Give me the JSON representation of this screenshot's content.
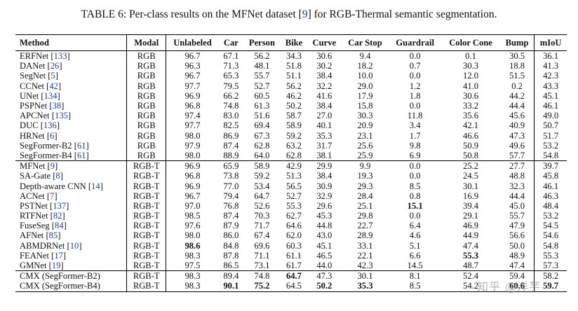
{
  "caption": {
    "prefix": "TABLE 6: Per-class results on the MFNet dataset [",
    "ref": "9",
    "suffix": "] for RGB-Thermal semantic segmentation."
  },
  "headers": [
    "Method",
    "Modal",
    "Unlabeled",
    "Car",
    "Person",
    "Bike",
    "Curve",
    "Car Stop",
    "Guardrail",
    "Color Cone",
    "Bump",
    "mIoU"
  ],
  "groups": [
    [
      {
        "name": "ERFNet",
        "ref": "133",
        "modal": "RGB",
        "vals": [
          "96.7",
          "67.1",
          "56.2",
          "34.3",
          "30.6",
          "9.4",
          "0.0",
          "0.1",
          "30.5",
          "36.1"
        ],
        "bold": []
      },
      {
        "name": "DANet",
        "ref": "26",
        "modal": "RGB",
        "vals": [
          "96.3",
          "71.3",
          "48.1",
          "51.8",
          "30.2",
          "18.2",
          "0.7",
          "30.3",
          "18.8",
          "41.3"
        ],
        "bold": []
      },
      {
        "name": "SegNet",
        "ref": "5",
        "modal": "RGB",
        "vals": [
          "96.7",
          "65.3",
          "55.7",
          "51.1",
          "38.4",
          "10.0",
          "0.0",
          "12.0",
          "51.5",
          "42.3"
        ],
        "bold": []
      },
      {
        "name": "CCNet",
        "ref": "42",
        "modal": "RGB",
        "vals": [
          "97.7",
          "79.5",
          "52.7",
          "56.2",
          "32.2",
          "29.0",
          "1.2",
          "41.0",
          "0.2",
          "43.3"
        ],
        "bold": []
      },
      {
        "name": "UNet",
        "ref": "134",
        "modal": "RGB",
        "vals": [
          "96.9",
          "66.2",
          "60.5",
          "46.2",
          "41.6",
          "17.9",
          "1.8",
          "30.6",
          "44.2",
          "45.1"
        ],
        "bold": []
      },
      {
        "name": "PSPNet",
        "ref": "38",
        "modal": "RGB",
        "vals": [
          "96.8",
          "74.8",
          "61.3",
          "50.2",
          "38.4",
          "15.8",
          "0.0",
          "33.2",
          "44.4",
          "46.1"
        ],
        "bold": []
      },
      {
        "name": "APCNet",
        "ref": "135",
        "modal": "RGB",
        "vals": [
          "97.4",
          "83.0",
          "51.6",
          "58.7",
          "27.0",
          "30.3",
          "11.8",
          "35.6",
          "45.6",
          "49.0"
        ],
        "bold": []
      },
      {
        "name": "DUC",
        "ref": "136",
        "modal": "RGB",
        "vals": [
          "97.7",
          "82.5",
          "69.4",
          "58.9",
          "40.1",
          "20.9",
          "3.4",
          "42.1",
          "40.9",
          "50.7"
        ],
        "bold": []
      },
      {
        "name": "HRNet",
        "ref": "6",
        "modal": "RGB",
        "vals": [
          "98.0",
          "86.9",
          "67.3",
          "59.2",
          "35.3",
          "23.1",
          "1.7",
          "46.6",
          "47.3",
          "51.7"
        ],
        "bold": []
      },
      {
        "name": "SegFormer-B2",
        "ref": "61",
        "modal": "RGB",
        "vals": [
          "97.9",
          "87.4",
          "62.8",
          "63.2",
          "31.7",
          "25.6",
          "9.8",
          "50.9",
          "49.6",
          "53.2"
        ],
        "bold": []
      },
      {
        "name": "SegFormer-B4",
        "ref": "61",
        "modal": "RGB",
        "vals": [
          "98.0",
          "88.9",
          "64.0",
          "62.8",
          "38.1",
          "25.9",
          "6.9",
          "50.8",
          "57.7",
          "54.8"
        ],
        "bold": []
      }
    ],
    [
      {
        "name": "MFNet",
        "ref": "9",
        "modal": "RGB-T",
        "vals": [
          "96.9",
          "65.9",
          "58.9",
          "42.9",
          "29.9",
          "9.9",
          "0.0",
          "25.2",
          "27.7",
          "39.7"
        ],
        "bold": []
      },
      {
        "name": "SA-Gate",
        "ref": "8",
        "modal": "RGB-T",
        "vals": [
          "96.8",
          "73.8",
          "59.2",
          "51.3",
          "38.4",
          "19.3",
          "0.0",
          "24.5",
          "48.8",
          "45.8"
        ],
        "bold": []
      },
      {
        "name": "Depth-aware CNN",
        "ref": "14",
        "modal": "RGB-T",
        "vals": [
          "96.9",
          "77.0",
          "53.4",
          "56.5",
          "30.9",
          "29.3",
          "8.5",
          "30.1",
          "32.3",
          "46.1"
        ],
        "bold": []
      },
      {
        "name": "ACNet",
        "ref": "7",
        "modal": "RGB-T",
        "vals": [
          "96.7",
          "79.4",
          "64.7",
          "52.7",
          "32.9",
          "28.4",
          "0.8",
          "16.9",
          "44.4",
          "46.3"
        ],
        "bold": []
      },
      {
        "name": "PSTNet",
        "ref": "137",
        "modal": "RGB-T",
        "vals": [
          "97.0",
          "76.8",
          "52.6",
          "55.3",
          "29.6",
          "25.1",
          "15.1",
          "39.4",
          "45.0",
          "48.4"
        ],
        "bold": [
          6
        ]
      },
      {
        "name": "RTFNet",
        "ref": "82",
        "modal": "RGB-T",
        "vals": [
          "98.5",
          "87.4",
          "70.3",
          "62.7",
          "45.3",
          "29.8",
          "0.0",
          "29.1",
          "55.7",
          "53.2"
        ],
        "bold": []
      },
      {
        "name": "FuseSeg",
        "ref": "84",
        "modal": "RGB-T",
        "vals": [
          "97.6",
          "87.9",
          "71.7",
          "64.6",
          "44.8",
          "22.7",
          "6.4",
          "46.9",
          "47.9",
          "54.5"
        ],
        "bold": []
      },
      {
        "name": "AFNet",
        "ref": "85",
        "modal": "RGB-T",
        "vals": [
          "98.0",
          "86.0",
          "67.4",
          "62.0",
          "43.0",
          "28.9",
          "4.6",
          "44.9",
          "56.6",
          "54.6"
        ],
        "bold": []
      },
      {
        "name": "ABMDRNet",
        "ref": "10",
        "modal": "RGB-T",
        "vals": [
          "98.6",
          "84.8",
          "69.6",
          "60.3",
          "45.1",
          "33.1",
          "5.1",
          "47.4",
          "50.0",
          "54.8"
        ],
        "bold": [
          0
        ]
      },
      {
        "name": "FEANet",
        "ref": "17",
        "modal": "RGB-T",
        "vals": [
          "98.3",
          "87.8",
          "71.1",
          "61.1",
          "46.5",
          "22.1",
          "6.6",
          "55.3",
          "48.9",
          "55.3"
        ],
        "bold": [
          7
        ]
      },
      {
        "name": "GMNet",
        "ref": "19",
        "modal": "RGB-T",
        "vals": [
          "97.5",
          "86.5",
          "73.1",
          "61.7",
          "44.0",
          "42.3",
          "14.5",
          "48.7",
          "47.4",
          "57.3"
        ],
        "bold": []
      }
    ],
    [
      {
        "name": "CMX (SegFormer-B2)",
        "ref": "",
        "modal": "RGB-T",
        "vals": [
          "98.3",
          "89.4",
          "74.8",
          "64.7",
          "47.3",
          "30.1",
          "8.1",
          "52.4",
          "59.4",
          "58.2"
        ],
        "bold": [
          3
        ]
      },
      {
        "name": "CMX (SegFormer-B4)",
        "ref": "",
        "modal": "RGB-T",
        "vals": [
          "98.3",
          "90.1",
          "75.2",
          "64.5",
          "50.2",
          "35.3",
          "8.5",
          "54.2",
          "60.6",
          "59.7"
        ],
        "bold": [
          1,
          2,
          4,
          5,
          8,
          9
        ]
      }
    ]
  ],
  "watermark": "知乎 @洋芋"
}
